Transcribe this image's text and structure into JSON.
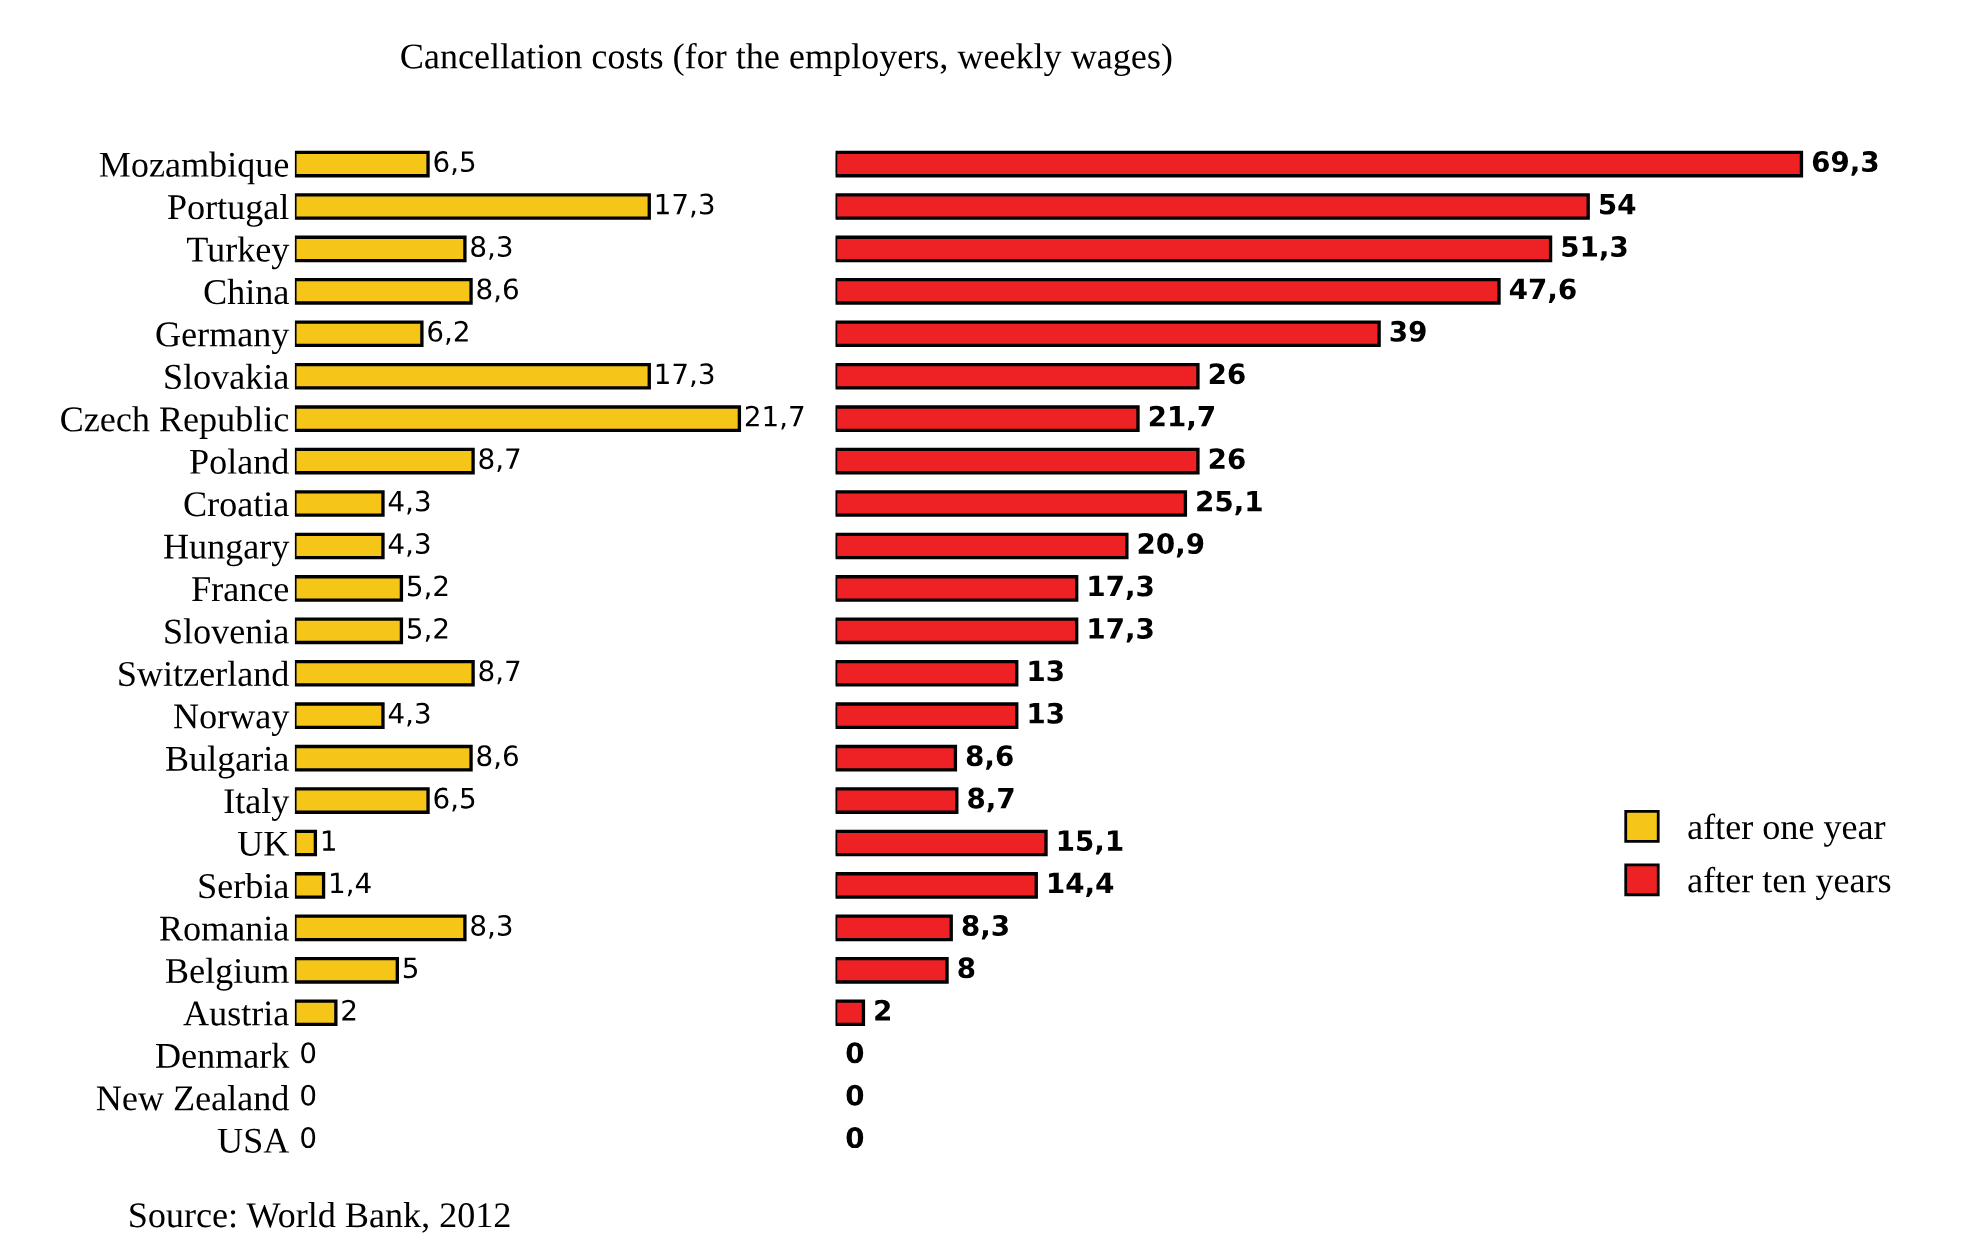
{
  "chart_data": [
    {
      "type": "bar",
      "orientation": "horizontal",
      "title": "Cancellation costs (for the employers, weekly wages)",
      "annotations": [
        "Source: World Bank, 2012"
      ],
      "legend": "right",
      "tick_labels": "y",
      "categories": [
        "Mozambique",
        "Portugal",
        "Turkey",
        "China",
        "Germany",
        "Slovakia",
        "Czech Republic",
        "Poland",
        "Croatia",
        "Hungary",
        "France",
        "Slovenia",
        "Switzerland",
        "Norway",
        "Bulgaria",
        "Italy",
        "UK",
        "Serbia",
        "Romania",
        "Belgium",
        "Austria",
        "Denmark",
        "New Zealand",
        "USA"
      ],
      "series": [
        {
          "name": "after one year",
          "color": "#f5c518",
          "values": [
            6.5,
            17.3,
            8.3,
            8.6,
            6.2,
            17.3,
            21.7,
            8.7,
            4.3,
            4.3,
            5.2,
            5.2,
            8.7,
            4.3,
            8.6,
            6.5,
            1,
            1.4,
            8.3,
            5,
            2,
            0,
            0,
            0
          ],
          "value_labels": [
            "6,5",
            "17,3",
            "8,3",
            "8,6",
            "6,2",
            "17,3",
            "21,7",
            "8,7",
            "4,3",
            "4,3",
            "5,2",
            "5,2",
            "8,7",
            "4,3",
            "8,6",
            "6,5",
            "1",
            "1,4",
            "8,3",
            "5",
            "2",
            "0",
            "0",
            "0"
          ]
        }
      ]
    },
    {
      "type": "bar",
      "orientation": "horizontal",
      "legend": "right",
      "tick_labels": false,
      "categories": [
        "Mozambique",
        "Portugal",
        "Turkey",
        "China",
        "Germany",
        "Slovakia",
        "Czech Republic",
        "Poland",
        "Croatia",
        "Hungary",
        "France",
        "Slovenia",
        "Switzerland",
        "Norway",
        "Bulgaria",
        "Italy",
        "UK",
        "Serbia",
        "Romania",
        "Belgium",
        "Austria",
        "Denmark",
        "New Zealand",
        "USA"
      ],
      "series": [
        {
          "name": "after ten years",
          "color": "#ee2224",
          "values": [
            69.3,
            54,
            51.3,
            47.6,
            39,
            26,
            21.7,
            26,
            25.1,
            20.9,
            17.3,
            17.3,
            13,
            13,
            8.6,
            8.7,
            15.1,
            14.4,
            8.3,
            8,
            2,
            0,
            0,
            0
          ],
          "value_labels": [
            "69,3",
            "54",
            "51,3",
            "47,6",
            "39",
            "26",
            "21,7",
            "26",
            "25,1",
            "20,9",
            "17,3",
            "17,3",
            "13",
            "13",
            "8,6",
            "8,7",
            "15,1",
            "14,4",
            "8,3",
            "8",
            "2",
            "0",
            "0",
            "0"
          ]
        }
      ]
    }
  ]
}
